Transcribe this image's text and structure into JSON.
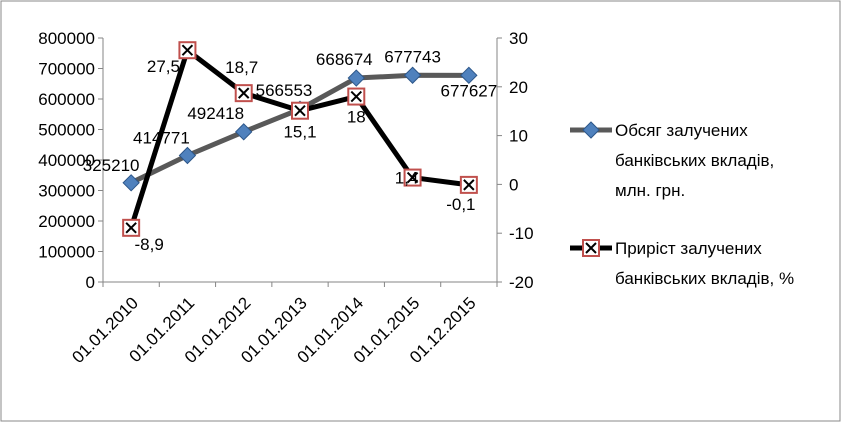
{
  "chart_data": {
    "type": "line",
    "categories": [
      "01.01.2010",
      "01.01.2011",
      "01.01.2012",
      "01.01.2013",
      "01.01.2014",
      "01.01.2015",
      "01.12.2015"
    ],
    "series": [
      {
        "name": "Обсяг залучених банківських вкладів, млн. грн.",
        "axis": "left",
        "values": [
          325210,
          414771,
          492418,
          566553,
          668674,
          677743,
          677627
        ],
        "labels": [
          "325210",
          "414771",
          "492418",
          "566553",
          "668674",
          "677743",
          "677627"
        ],
        "color": "#595959",
        "marker_color": "#4f81bd",
        "marker": "diamond"
      },
      {
        "name": "Приріст залучених банківських вкладів, %",
        "axis": "right",
        "values": [
          -8.9,
          27.5,
          18.7,
          15.1,
          18,
          1.4,
          -0.1
        ],
        "labels": [
          "-8,9",
          "27,5",
          "18,7",
          "15,1",
          "18",
          "1,4",
          "-0,1"
        ],
        "color": "#000000",
        "marker_color": "#c0504d",
        "marker": "square"
      }
    ],
    "y_left": {
      "min": 0,
      "max": 800000,
      "ticks": [
        "0",
        "100000",
        "200000",
        "300000",
        "400000",
        "500000",
        "600000",
        "700000",
        "800000"
      ]
    },
    "y_right": {
      "min": -20,
      "max": 30,
      "ticks": [
        "-20",
        "-10",
        "0",
        "10",
        "20",
        "30"
      ]
    },
    "grid": false,
    "legend_position": "right"
  }
}
